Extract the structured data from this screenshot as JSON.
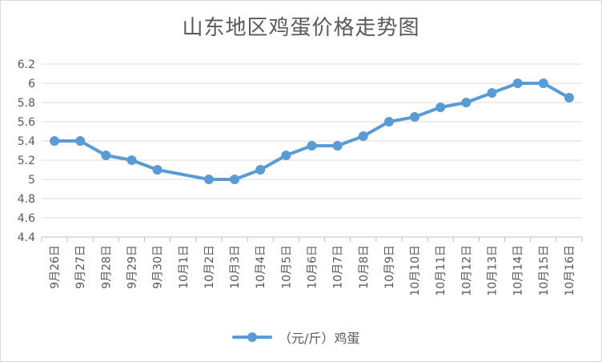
{
  "chart_data": {
    "type": "line",
    "title": "山东地区鸡蛋价格走势图",
    "xlabel": "",
    "ylabel": "",
    "ylim": [
      4.4,
      6.2
    ],
    "yticks": [
      "4.4",
      "4.6",
      "4.8",
      "5",
      "5.2",
      "5.4",
      "5.6",
      "5.8",
      "6",
      "6.2"
    ],
    "grid": true,
    "legend_position": "bottom",
    "categories": [
      "9月26日",
      "9月27日",
      "9月28日",
      "9月29日",
      "9月30日",
      "10月1日",
      "10月2日",
      "10月3日",
      "10月4日",
      "10月5日",
      "10月6日",
      "10月7日",
      "10月8日",
      "10月9日",
      "10月10日",
      "10月11日",
      "10月12日",
      "10月13日",
      "10月14日",
      "10月15日",
      "10月16日"
    ],
    "series": [
      {
        "name": "（元/斤）鸡蛋",
        "color": "#5b9bd5",
        "values": [
          5.4,
          5.4,
          5.25,
          5.2,
          5.1,
          null,
          5.0,
          5.0,
          5.1,
          5.25,
          5.35,
          5.35,
          5.45,
          5.6,
          5.65,
          5.75,
          5.8,
          5.9,
          6.0,
          6.0,
          5.85
        ]
      }
    ]
  }
}
